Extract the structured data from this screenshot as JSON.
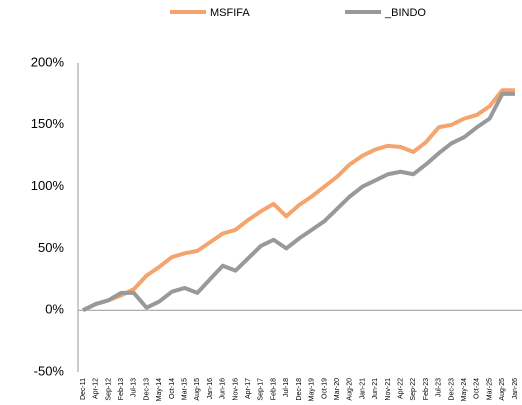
{
  "chart_data": {
    "type": "line",
    "categories": [
      "Dec-11",
      "Apr-12",
      "Sep-12",
      "Feb-13",
      "Jul-13",
      "Dec-13",
      "May-14",
      "Oct-14",
      "Mar-15",
      "Aug-15",
      "Jan-16",
      "Jun-16",
      "Nov-16",
      "Apr-17",
      "Sep-17",
      "Feb-18",
      "Jul-18",
      "Dec-18",
      "May-19",
      "Oct-19",
      "Mar-20",
      "Aug-20",
      "Jan-21",
      "Jun-21",
      "Nov-21",
      "Apr-22",
      "Sep-22",
      "Feb-23",
      "Jul-23",
      "Dec-23",
      "May-24",
      "Oct-24",
      "Mar-25",
      "Aug-25",
      "Jan-26"
    ],
    "series": [
      {
        "name": "MSFIFA",
        "color": "#f4a46c",
        "values": [
          0,
          5,
          8,
          12,
          17,
          28,
          35,
          43,
          46,
          48,
          55,
          62,
          65,
          73,
          80,
          86,
          76,
          85,
          92,
          100,
          108,
          118,
          125,
          130,
          133,
          132,
          128,
          136,
          148,
          150,
          155,
          158,
          165,
          178,
          178
        ]
      },
      {
        "name": "_BINDO",
        "color": "#999999",
        "values": [
          0,
          5,
          8,
          14,
          14,
          2,
          7,
          15,
          18,
          14,
          25,
          36,
          32,
          42,
          52,
          57,
          50,
          58,
          65,
          72,
          82,
          92,
          100,
          105,
          110,
          112,
          110,
          118,
          127,
          135,
          140,
          148,
          155,
          175,
          175
        ]
      }
    ],
    "ylim": [
      -50,
      200
    ],
    "yticks": [
      {
        "value": -50,
        "label": "-50%"
      },
      {
        "value": 0,
        "label": "0%"
      },
      {
        "value": 50,
        "label": "50%"
      },
      {
        "value": 100,
        "label": "100%"
      },
      {
        "value": 150,
        "label": "150%"
      },
      {
        "value": 200,
        "label": "200%"
      }
    ],
    "grid": false
  }
}
